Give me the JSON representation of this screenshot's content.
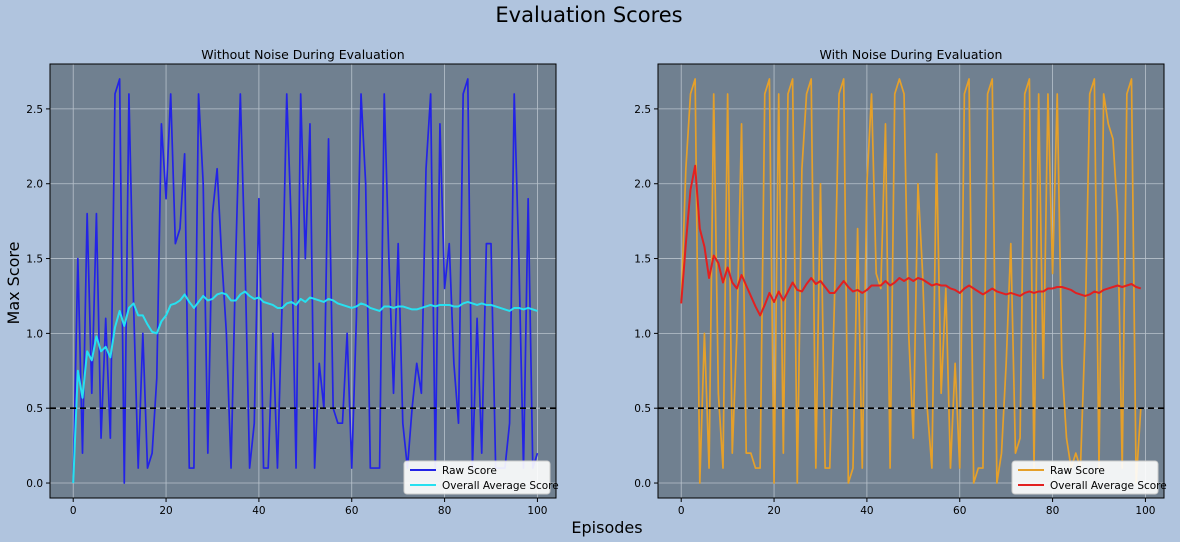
{
  "figure": {
    "title": "Evaluation Scores",
    "xlabel": "Episodes",
    "ylabel": "Max Score",
    "background": "#b0c4de",
    "axes_background": "#708090",
    "grid_color": "#b8c2cc"
  },
  "chart_data": [
    {
      "type": "line",
      "title": "Without Noise During Evaluation",
      "xlim": [
        -5,
        104
      ],
      "ylim": [
        -0.1,
        2.8
      ],
      "xticks": [
        0,
        20,
        40,
        60,
        80,
        100
      ],
      "xtick_labels": [
        "0",
        "20",
        "40",
        "60",
        "80",
        "100"
      ],
      "yticks": [
        0,
        0.5,
        1.0,
        1.5,
        2.0,
        2.5
      ],
      "ytick_labels": [
        "0.0",
        "0.5",
        "1.0",
        "1.5",
        "2.0",
        "2.5"
      ],
      "grid": true,
      "legend_position": "lower-right",
      "threshold": 0.5,
      "series": [
        {
          "name": "Raw Score",
          "color": "#2323e6",
          "values": [
            0.0,
            1.5,
            0.2,
            1.8,
            0.6,
            1.8,
            0.3,
            1.1,
            0.3,
            2.6,
            2.7,
            0.0,
            2.6,
            1.2,
            0.1,
            1.0,
            0.1,
            0.2,
            0.7,
            2.4,
            1.9,
            2.6,
            1.6,
            1.7,
            2.2,
            0.1,
            0.1,
            2.6,
            2.0,
            0.2,
            1.8,
            2.1,
            1.5,
            1.0,
            0.1,
            1.5,
            2.6,
            1.5,
            0.1,
            0.4,
            1.9,
            0.1,
            0.1,
            1.0,
            0.1,
            1.2,
            2.6,
            1.7,
            0.1,
            2.6,
            1.5,
            2.4,
            0.1,
            0.8,
            0.5,
            2.3,
            0.5,
            0.4,
            0.4,
            1.0,
            0.1,
            1.1,
            2.6,
            2.0,
            0.1,
            0.1,
            0.1,
            2.6,
            1.5,
            0.6,
            1.6,
            0.4,
            0.1,
            0.5,
            0.8,
            0.6,
            2.1,
            2.6,
            0.1,
            2.4,
            1.3,
            1.6,
            0.8,
            0.4,
            2.6,
            2.7,
            0.1,
            1.1,
            0.2,
            1.6,
            1.6,
            0.1,
            0.1,
            0.1,
            0.4,
            2.6,
            1.5,
            0.1,
            1.9,
            0.1,
            0.2
          ]
        },
        {
          "name": "Overall Average Score",
          "color": "#27e0f0",
          "values": [
            0.0,
            0.75,
            0.57,
            0.88,
            0.82,
            0.98,
            0.88,
            0.91,
            0.84,
            1.04,
            1.15,
            1.05,
            1.17,
            1.2,
            1.12,
            1.12,
            1.06,
            1.01,
            1.0,
            1.08,
            1.12,
            1.19,
            1.2,
            1.22,
            1.26,
            1.21,
            1.17,
            1.21,
            1.25,
            1.22,
            1.23,
            1.26,
            1.27,
            1.26,
            1.22,
            1.22,
            1.26,
            1.28,
            1.25,
            1.23,
            1.24,
            1.21,
            1.2,
            1.19,
            1.17,
            1.17,
            1.2,
            1.21,
            1.19,
            1.23,
            1.21,
            1.24,
            1.23,
            1.22,
            1.21,
            1.23,
            1.22,
            1.2,
            1.19,
            1.18,
            1.17,
            1.18,
            1.2,
            1.19,
            1.17,
            1.16,
            1.15,
            1.18,
            1.18,
            1.17,
            1.18,
            1.18,
            1.17,
            1.16,
            1.16,
            1.17,
            1.18,
            1.19,
            1.18,
            1.19,
            1.19,
            1.19,
            1.18,
            1.18,
            1.2,
            1.21,
            1.2,
            1.19,
            1.2,
            1.19,
            1.19,
            1.18,
            1.17,
            1.16,
            1.15,
            1.17,
            1.17,
            1.16,
            1.17,
            1.16,
            1.15
          ]
        }
      ]
    },
    {
      "type": "line",
      "title": "With Noise During Evaluation",
      "xlim": [
        -5,
        104
      ],
      "ylim": [
        -0.1,
        2.8
      ],
      "xticks": [
        0,
        20,
        40,
        60,
        80,
        100
      ],
      "xtick_labels": [
        "0",
        "20",
        "40",
        "60",
        "80",
        "100"
      ],
      "yticks": [
        0,
        0.5,
        1.0,
        1.5,
        2.0,
        2.5
      ],
      "ytick_labels": [
        "0.0",
        "0.5",
        "1.0",
        "1.5",
        "2.0",
        "2.5"
      ],
      "grid": true,
      "legend_position": "lower-right",
      "threshold": 0.5,
      "series": [
        {
          "name": "Raw Score",
          "color": "#e5a02a",
          "values": [
            1.2,
            2.1,
            2.6,
            2.7,
            0.0,
            1.0,
            0.1,
            2.6,
            0.6,
            0.1,
            2.6,
            0.2,
            1.0,
            2.4,
            0.2,
            0.2,
            0.1,
            0.1,
            2.6,
            2.7,
            0.0,
            2.6,
            0.2,
            2.6,
            2.7,
            0.0,
            2.1,
            2.6,
            2.7,
            0.1,
            2.0,
            0.1,
            0.1,
            1.2,
            2.6,
            2.7,
            0.0,
            0.1,
            1.7,
            0.1,
            2.0,
            2.6,
            1.4,
            1.3,
            2.4,
            0.1,
            2.6,
            2.7,
            2.6,
            1.0,
            0.3,
            2.0,
            1.4,
            0.5,
            0.1,
            2.2,
            0.6,
            1.3,
            0.1,
            0.8,
            0.1,
            2.6,
            2.7,
            0.0,
            0.1,
            0.1,
            2.6,
            2.7,
            0.0,
            0.2,
            0.8,
            1.6,
            0.2,
            0.3,
            2.6,
            2.7,
            0.1,
            2.6,
            0.7,
            2.6,
            1.4,
            2.6,
            0.8,
            0.3,
            0.1,
            0.2,
            0.1,
            1.0,
            2.6,
            2.7,
            0.1,
            2.6,
            2.4,
            2.3,
            1.8,
            0.1,
            2.6,
            2.7,
            0.0,
            0.5
          ]
        },
        {
          "name": "Overall Average Score",
          "color": "#e22020",
          "values": [
            1.2,
            1.6,
            1.96,
            2.12,
            1.7,
            1.58,
            1.37,
            1.52,
            1.47,
            1.34,
            1.44,
            1.34,
            1.3,
            1.39,
            1.32,
            1.25,
            1.18,
            1.12,
            1.19,
            1.27,
            1.21,
            1.28,
            1.22,
            1.28,
            1.34,
            1.29,
            1.28,
            1.33,
            1.37,
            1.33,
            1.35,
            1.31,
            1.27,
            1.27,
            1.31,
            1.35,
            1.31,
            1.28,
            1.29,
            1.27,
            1.29,
            1.32,
            1.32,
            1.32,
            1.35,
            1.32,
            1.34,
            1.37,
            1.35,
            1.37,
            1.35,
            1.37,
            1.36,
            1.34,
            1.32,
            1.33,
            1.32,
            1.32,
            1.3,
            1.29,
            1.27,
            1.3,
            1.32,
            1.3,
            1.28,
            1.26,
            1.28,
            1.3,
            1.28,
            1.27,
            1.26,
            1.27,
            1.26,
            1.25,
            1.27,
            1.28,
            1.27,
            1.28,
            1.28,
            1.3,
            1.3,
            1.31,
            1.31,
            1.3,
            1.29,
            1.27,
            1.26,
            1.25,
            1.26,
            1.28,
            1.27,
            1.29,
            1.3,
            1.31,
            1.32,
            1.31,
            1.32,
            1.33,
            1.31,
            1.3
          ]
        }
      ]
    }
  ]
}
